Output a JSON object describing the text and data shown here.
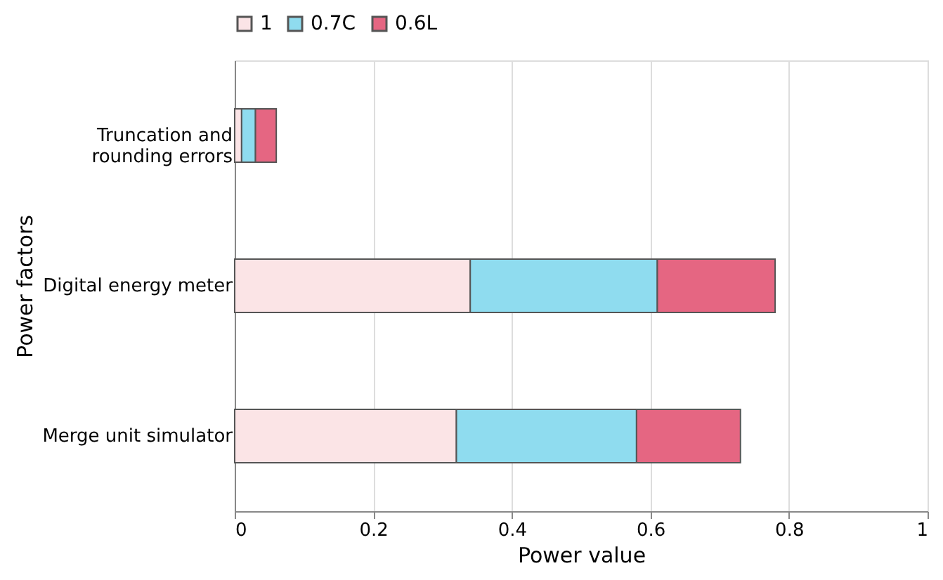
{
  "chart_data": {
    "type": "bar",
    "orientation": "horizontal",
    "stacked": true,
    "xlabel": "Power value",
    "ylabel": "Power factors",
    "categories": [
      "Truncation and\nrounding errors",
      "Digital energy meter",
      "Merge unit simulator"
    ],
    "series": [
      {
        "name": "1",
        "color": "#fbe4e6",
        "values": [
          0.01,
          0.34,
          0.32
        ]
      },
      {
        "name": "0.7C",
        "color": "#8fdcef",
        "values": [
          0.02,
          0.27,
          0.26
        ]
      },
      {
        "name": "0.6L",
        "color": "#e56682",
        "values": [
          0.03,
          0.17,
          0.15
        ]
      }
    ],
    "xlim": [
      0,
      1
    ],
    "xticks": [
      0,
      0.2,
      0.4,
      0.6,
      0.8,
      1
    ],
    "grid": "x",
    "legend": "top"
  }
}
